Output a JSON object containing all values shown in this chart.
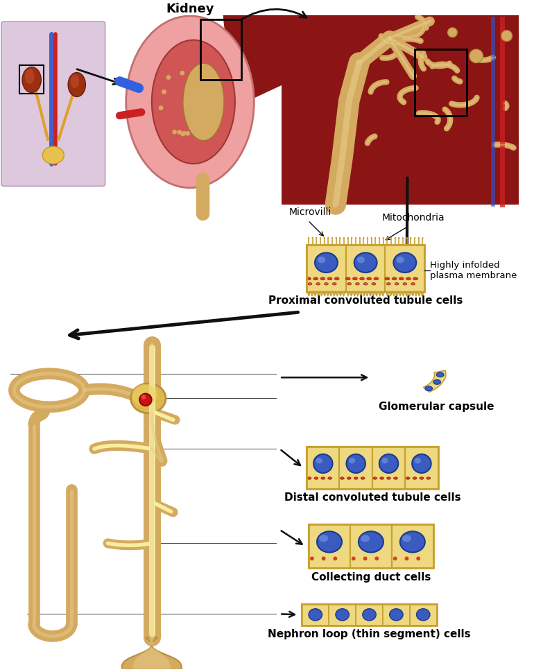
{
  "background_color": "#ffffff",
  "kidney_label": "Kidney",
  "labels": {
    "microvilli": "Microvilli",
    "mitochondria": "Mitochondria",
    "highly_infolded": "Highly infolded\nplasma membrane",
    "proximal": "Proximal convoluted tubule cells",
    "glomerular": "Glomerular capsule",
    "distal": "Distal convoluted tubule cells",
    "collecting": "Collecting duct cells",
    "nephron_loop": "Nephron loop (thin segment) cells"
  },
  "colors": {
    "tan": "#D4AA60",
    "tan_light": "#E8CC88",
    "tan_dark": "#B89040",
    "tan_shadow": "#C09030",
    "cell_fill": "#EED880",
    "cell_border": "#C8A030",
    "nuc_blue": "#3A5CC0",
    "nuc_dark": "#1A3A90",
    "nuc_light": "#7090E0",
    "org_red": "#D84020",
    "org_red2": "#E06040",
    "arrow": "#101010",
    "line_thin": "#303030",
    "kidney_outer": "#E89090",
    "kidney_inner": "#D06060",
    "kidney_pelvis": "#F0C070",
    "body_bg": "#E8C8C8",
    "body_outline": "#C09090",
    "tissue_bg": "#8B1A1A",
    "tissue_dark": "#6B1010",
    "tubule_tan": "#D4AA60",
    "blood_red": "#CC2020",
    "blood_blue": "#2040CC",
    "glom_fill": "#D8C070",
    "glom_red": "#CC2010"
  },
  "layout": {
    "fig_w": 7.7,
    "fig_h": 9.69,
    "dpi": 100
  }
}
